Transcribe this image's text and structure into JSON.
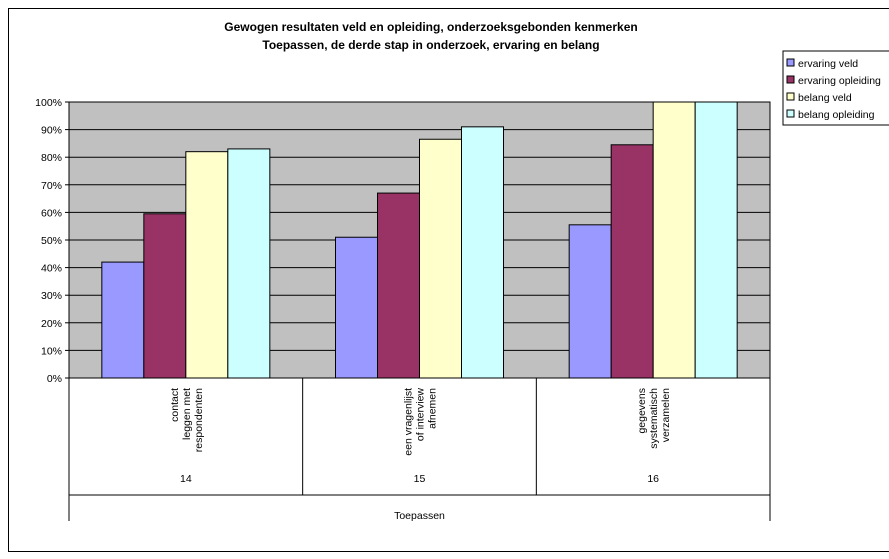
{
  "chart_data": {
    "type": "bar",
    "title_lines": [
      "Gewogen resultaten veld en opleiding, onderzoeksgebonden kenmerken",
      "Toepassen, de derde stap in onderzoek, ervaring en belang"
    ],
    "ylim": [
      0,
      100
    ],
    "ytick_labels": [
      "0%",
      "10%",
      "20%",
      "30%",
      "40%",
      "50%",
      "60%",
      "70%",
      "80%",
      "90%",
      "100%"
    ],
    "grid": true,
    "legend_placement": "top-right",
    "categories": [
      {
        "label_lines": [
          "contact",
          "leggen met",
          "respondenten"
        ],
        "number": "14"
      },
      {
        "label_lines": [
          "een vragenlijst",
          "of interview",
          "afnemen"
        ],
        "number": "15"
      },
      {
        "label_lines": [
          "gegevens",
          "systematisch",
          "verzamelen"
        ],
        "number": "16"
      }
    ],
    "group_label": "Toepassen",
    "series": [
      {
        "name": "ervaring veld",
        "color": "#9999ff",
        "values": [
          42,
          51,
          55.5
        ]
      },
      {
        "name": "ervaring opleiding",
        "color": "#993366",
        "values": [
          59.5,
          67,
          84.5
        ]
      },
      {
        "name": "belang veld",
        "color": "#ffffcc",
        "values": [
          82,
          86.5,
          100
        ]
      },
      {
        "name": "belang opleiding",
        "color": "#ccffff",
        "values": [
          83,
          91,
          100
        ]
      }
    ],
    "plot_bg": "#c0c0c0"
  }
}
